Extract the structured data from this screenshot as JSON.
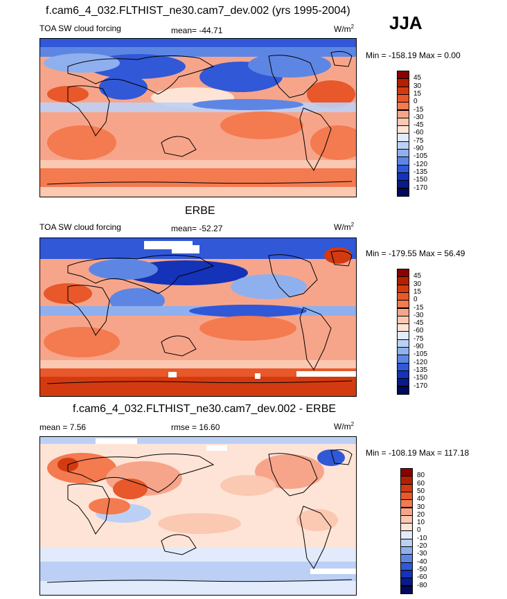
{
  "season": "JJA",
  "panels": [
    {
      "title": "f.cam6_4_032.FLTHIST_ne30.cam7_dev.002 (yrs 1995-2004)",
      "left_label": "TOA SW cloud forcing",
      "center_label": "mean= -44.71",
      "units": "W/m",
      "units_sup": "2",
      "minmax": "Min = -158.19 Max =   0.00",
      "legend": [
        "45",
        "30",
        "15",
        "0",
        "-15",
        "-30",
        "-45",
        "-60",
        "-75",
        "-90",
        "-105",
        "-120",
        "-135",
        "-150",
        "-170"
      ]
    },
    {
      "title": "ERBE",
      "left_label": "TOA SW cloud forcing",
      "center_label": "mean= -52.27",
      "units": "W/m",
      "units_sup": "2",
      "minmax": "Min = -179.55 Max =  56.49",
      "legend": [
        "45",
        "30",
        "15",
        "0",
        "-15",
        "-30",
        "-45",
        "-60",
        "-75",
        "-90",
        "-105",
        "-120",
        "-135",
        "-150",
        "-170"
      ]
    },
    {
      "title": "f.cam6_4_032.FLTHIST_ne30.cam7_dev.002 - ERBE",
      "left_label": "mean =   7.56",
      "center_label": "rmse =  16.60",
      "units": "W/m",
      "units_sup": "2",
      "minmax": "Min = -108.19 Max = 117.18",
      "legend": [
        "80",
        "60",
        "50",
        "40",
        "30",
        "20",
        "10",
        "0",
        "-10",
        "-20",
        "-30",
        "-40",
        "-50",
        "-60",
        "-80"
      ]
    }
  ],
  "colors": {
    "abs_scale": [
      "#8b0000",
      "#b22000",
      "#d43a10",
      "#e8582a",
      "#f47a50",
      "#f7a58a",
      "#fbc8b2",
      "#fde4d6",
      "#e2ebfb",
      "#bcd0f5",
      "#8fb0ee",
      "#5d86e4",
      "#3158d6",
      "#1433b8",
      "#0a1a8a",
      "#000a5e"
    ],
    "diff_scale": [
      "#8b0000",
      "#b22000",
      "#d43a10",
      "#e8582a",
      "#f47a50",
      "#f7a58a",
      "#fbc8b2",
      "#fde4d6",
      "#e2ebfb",
      "#bcd0f5",
      "#8fb0ee",
      "#5d86e4",
      "#3158d6",
      "#1433b8",
      "#0a1a8a",
      "#000a5e"
    ]
  }
}
